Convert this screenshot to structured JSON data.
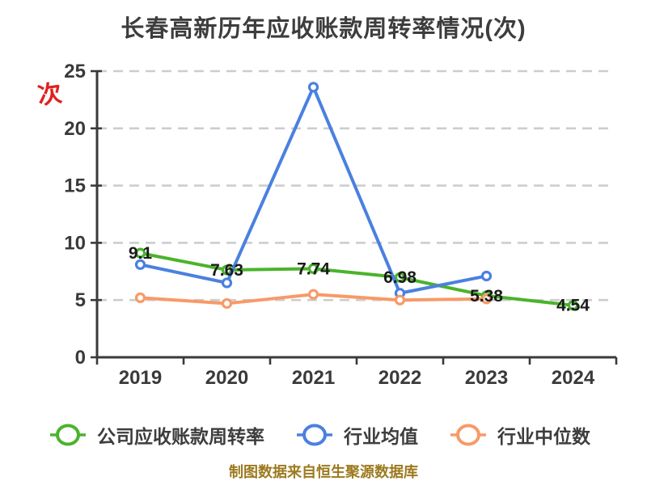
{
  "title": "长春高新历年应收账款周转率情况(次)",
  "y_axis_unit": "次",
  "footnote": "制图数据来自恒生聚源数据库",
  "colors": {
    "company": "#4bb32b",
    "industry_avg": "#4a80e0",
    "industry_median": "#f79a68",
    "title_text": "#3d3d3d",
    "axis": "#3a3a3a",
    "grid": "#cdcdcd",
    "data_label": "#1a1a1a",
    "footnote_text": "#9c7a1f",
    "unit_label": "#e02020",
    "marker_fill": "#ffffff"
  },
  "chart_data": {
    "type": "line",
    "title": "长春高新历年应收账款周转率情况(次)",
    "categories": [
      "2019",
      "2020",
      "2021",
      "2022",
      "2023",
      "2024"
    ],
    "series": [
      {
        "name": "公司应收账款周转率",
        "color": "#4bb32b",
        "values": [
          9.1,
          7.63,
          7.74,
          6.98,
          5.38,
          4.54
        ],
        "labels": [
          "9.1",
          "7.63",
          "7.74",
          "6.98",
          "5.38",
          "4.54"
        ]
      },
      {
        "name": "行业均值",
        "color": "#4a80e0",
        "values": [
          8.1,
          6.5,
          23.6,
          5.6,
          7.1,
          null
        ],
        "labels": null
      },
      {
        "name": "行业中位数",
        "color": "#f79a68",
        "values": [
          5.2,
          4.7,
          5.5,
          5.0,
          5.1,
          null
        ],
        "labels": null
      }
    ],
    "xlabel": "",
    "ylabel": "次",
    "ylim": [
      0,
      25
    ],
    "yticks": [
      0,
      5,
      10,
      15,
      20,
      25
    ],
    "grid": "horizontal-dashed",
    "legend_position": "bottom",
    "style": "hand-drawn"
  }
}
